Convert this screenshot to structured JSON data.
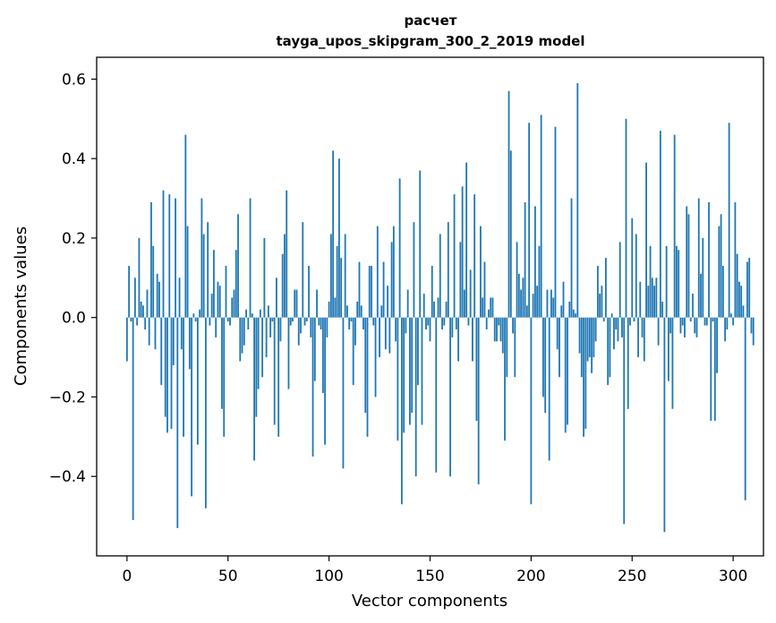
{
  "chart_data": {
    "type": "bar",
    "title": "расчет",
    "subtitle": "tayga_upos_skipgram_300_2_2019 model",
    "xlabel": "Vector components",
    "ylabel": "Components values",
    "xlim": [
      -15,
      315
    ],
    "ylim": [
      -0.6,
      0.655
    ],
    "xticks": [
      0,
      50,
      100,
      150,
      200,
      250,
      300
    ],
    "xtick_labels": [
      "0",
      "50",
      "100",
      "150",
      "200",
      "250",
      "300"
    ],
    "yticks": [
      -0.4,
      -0.2,
      0.0,
      0.2,
      0.4,
      0.6
    ],
    "ytick_labels": [
      "−0.4",
      "−0.2",
      "0.0",
      "0.2",
      "0.4",
      "0.6"
    ],
    "bar_color": "#1f77b4",
    "grid": false,
    "legend": "none",
    "series": [
      {
        "values": [
          -0.11,
          0.13,
          -0.01,
          -0.51,
          0.1,
          -0.02,
          0.2,
          0.04,
          0.03,
          -0.03,
          0.07,
          -0.07,
          0.29,
          0.18,
          -0.08,
          0.11,
          0.09,
          -0.17,
          0.32,
          -0.25,
          -0.29,
          0.31,
          -0.28,
          -0.12,
          0.3,
          -0.53,
          0.1,
          -0.08,
          -0.3,
          0.46,
          0.23,
          -0.13,
          -0.45,
          0.01,
          -0.01,
          -0.32,
          0.02,
          0.3,
          0.21,
          -0.48,
          0.24,
          -0.02,
          0.06,
          0.17,
          -0.05,
          0.09,
          0.08,
          -0.23,
          -0.3,
          0.13,
          -0.01,
          -0.02,
          0.05,
          0.07,
          0.17,
          0.26,
          -0.11,
          -0.09,
          -0.07,
          0.02,
          -0.03,
          0.3,
          0.01,
          -0.36,
          -0.25,
          -0.18,
          0.02,
          -0.15,
          0.2,
          -0.1,
          0.03,
          -0.05,
          -0.01,
          -0.27,
          0.1,
          -0.3,
          -0.06,
          0.16,
          0.21,
          0.32,
          -0.18,
          -0.02,
          -0.01,
          0.07,
          0.07,
          -0.07,
          -0.04,
          0.24,
          -0.02,
          -0.01,
          0.13,
          -0.05,
          -0.35,
          -0.16,
          0.07,
          -0.02,
          -0.03,
          -0.19,
          -0.32,
          -0.05,
          0.04,
          0.21,
          0.42,
          0.05,
          0.18,
          0.4,
          0.15,
          -0.38,
          0.21,
          0.03,
          -0.03,
          -0.01,
          -0.17,
          -0.07,
          0.04,
          0.14,
          0.03,
          -0.03,
          -0.24,
          -0.3,
          0.13,
          0.13,
          -0.02,
          -0.2,
          0.23,
          -0.1,
          0.03,
          0.14,
          -0.08,
          0.08,
          -0.09,
          0.19,
          0.23,
          -0.06,
          -0.31,
          0.35,
          -0.47,
          -0.29,
          -0.04,
          0.07,
          -0.27,
          -0.24,
          0.24,
          -0.4,
          -0.17,
          0.37,
          -0.27,
          0.06,
          -0.03,
          -0.02,
          -0.06,
          0.13,
          0.04,
          -0.39,
          0.05,
          0.21,
          -0.03,
          -0.02,
          0.04,
          0.24,
          -0.4,
          -0.05,
          0.31,
          -0.03,
          -0.11,
          0.19,
          0.33,
          0.07,
          0.39,
          -0.02,
          0.12,
          -0.11,
          0.31,
          -0.26,
          -0.42,
          0.23,
          0.05,
          0.14,
          -0.03,
          0.02,
          0.05,
          0.05,
          -0.06,
          -0.06,
          -0.02,
          -0.06,
          -0.09,
          -0.31,
          -0.15,
          0.57,
          0.42,
          -0.04,
          -0.15,
          0.19,
          0.11,
          0.07,
          0.1,
          0.29,
          0.03,
          0.49,
          -0.47,
          0.06,
          0.28,
          0.08,
          0.18,
          0.51,
          -0.2,
          -0.24,
          0.07,
          -0.36,
          0.07,
          0.05,
          0.48,
          -0.08,
          -0.15,
          0.03,
          0.09,
          -0.29,
          -0.27,
          0.04,
          0.3,
          0.02,
          0.01,
          0.59,
          -0.09,
          -0.15,
          -0.3,
          -0.28,
          -0.11,
          -0.1,
          -0.14,
          -0.1,
          -0.06,
          0.13,
          0.06,
          0.08,
          -0.01,
          0.15,
          -0.17,
          -0.15,
          0.01,
          -0.08,
          -0.03,
          -0.06,
          0.19,
          -0.05,
          -0.52,
          0.5,
          -0.23,
          -0.02,
          0.25,
          -0.01,
          0.21,
          -0.1,
          0.09,
          -0.05,
          -0.11,
          0.39,
          0.08,
          0.18,
          0.1,
          0.08,
          0.1,
          -0.07,
          0.47,
          0.04,
          -0.54,
          0.18,
          -0.16,
          -0.04,
          -0.23,
          0.46,
          0.18,
          0.17,
          -0.04,
          -0.02,
          -0.05,
          0.28,
          0.26,
          -0.01,
          0.06,
          -0.04,
          -0.05,
          0.3,
          0.11,
          0.2,
          -0.02,
          -0.02,
          0.29,
          -0.26,
          -0.01,
          -0.26,
          -0.14,
          0.23,
          0.26,
          0.13,
          -0.06,
          -0.03,
          0.49,
          0.01,
          -0.02,
          0.29,
          0.16,
          0.09,
          0.08,
          0.03,
          -0.46,
          0.14,
          0.15,
          -0.04,
          -0.07
        ]
      }
    ]
  }
}
